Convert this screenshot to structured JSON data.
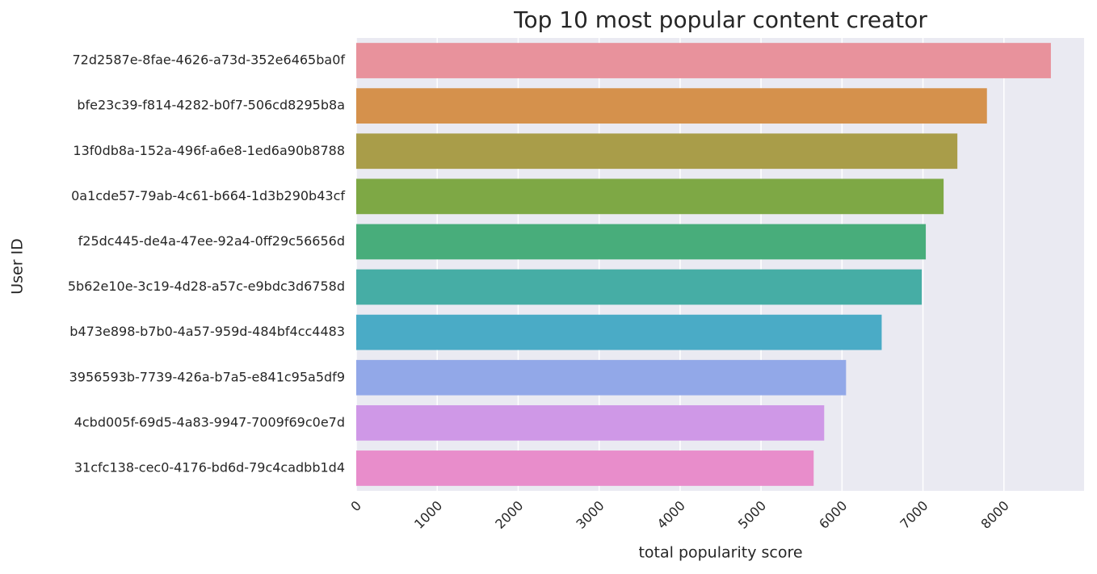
{
  "chart_data": {
    "type": "bar",
    "orientation": "horizontal",
    "title": "Top 10 most popular content creator",
    "x_label": "total popularity score",
    "y_label": "User ID",
    "categories": [
      "72d2587e-8fae-4626-a73d-352e6465ba0f",
      "bfe23c39-f814-4282-b0f7-506cd8295b8a",
      "13f0db8a-152a-496f-a6e8-1ed6a90b8788",
      "0a1cde57-79ab-4c61-b664-1d3b290b43cf",
      "f25dc445-de4a-47ee-92a4-0ff29c56656d",
      "5b62e10e-3c19-4d28-a57c-e9bdc3d6758d",
      "b473e898-b7b0-4a57-959d-484bf4cc4483",
      "3956593b-7739-426a-b7a5-e841c95a5df9",
      "4cbd005f-69d5-4a83-9947-7009f69c0e7d",
      "31cfc138-cec0-4176-bd6d-79c4cadbb1d4"
    ],
    "values": [
      8580,
      7790,
      7425,
      7255,
      7035,
      6985,
      6490,
      6050,
      5780,
      5650
    ],
    "colors": [
      "#e8929c",
      "#d5914c",
      "#a99d49",
      "#7ea845",
      "#48ad7b",
      "#46ada5",
      "#4aabc6",
      "#92a8e8",
      "#cf98e7",
      "#e88dcb"
    ],
    "xlim": [
      0,
      8990
    ],
    "xticks": [
      0,
      1000,
      2000,
      3000,
      4000,
      5000,
      6000,
      7000,
      8000
    ],
    "grid": true
  }
}
